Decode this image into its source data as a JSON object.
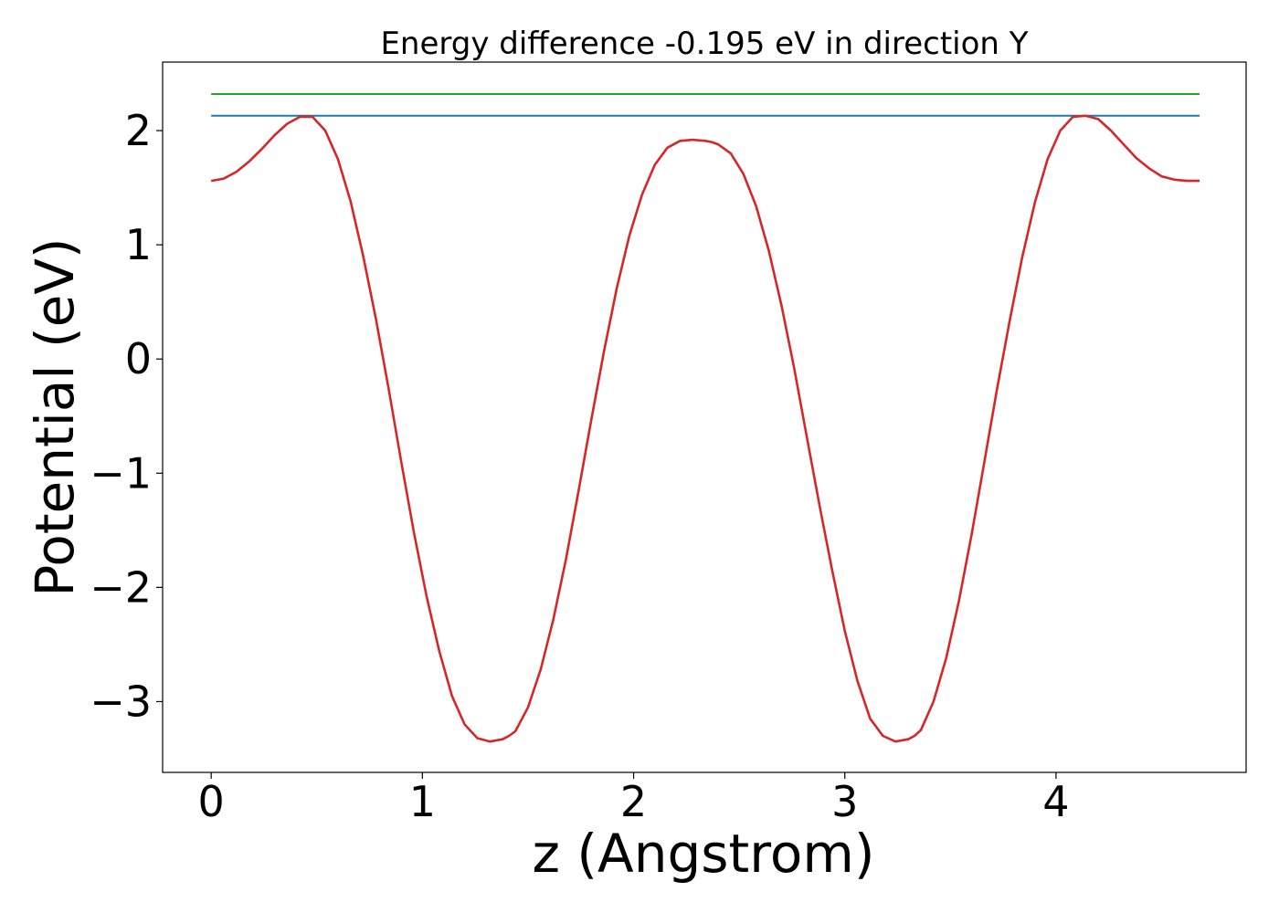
{
  "chart_data": {
    "type": "line",
    "title": "Energy difference -0.195 eV in direction Y",
    "xlabel": "z (Angstrom)",
    "ylabel": "Potential (eV)",
    "xlim": [
      -0.23,
      4.9
    ],
    "ylim": [
      -3.62,
      2.6
    ],
    "xticks": [
      0,
      1,
      2,
      3,
      4
    ],
    "xtick_labels": [
      "0",
      "1",
      "2",
      "3",
      "4"
    ],
    "yticks": [
      -3,
      -2,
      -1,
      0,
      1,
      2
    ],
    "ytick_labels": [
      "−3",
      "−2",
      "−1",
      "0",
      "1",
      "2"
    ],
    "grid": false,
    "series": [
      {
        "color": "#d62728",
        "x": [
          0.0,
          0.06,
          0.12,
          0.18,
          0.24,
          0.3,
          0.36,
          0.42,
          0.48,
          0.54,
          0.6,
          0.66,
          0.72,
          0.78,
          0.84,
          0.9,
          0.96,
          1.02,
          1.08,
          1.14,
          1.2,
          1.26,
          1.32,
          1.38,
          1.41,
          1.44,
          1.5,
          1.56,
          1.62,
          1.68,
          1.74,
          1.8,
          1.86,
          1.92,
          1.98,
          2.04,
          2.1,
          2.16,
          2.22,
          2.28,
          2.34,
          2.37,
          2.4,
          2.46,
          2.52,
          2.58,
          2.64,
          2.7,
          2.76,
          2.82,
          2.88,
          2.94,
          3.0,
          3.06,
          3.12,
          3.18,
          3.24,
          3.3,
          3.33,
          3.36,
          3.42,
          3.48,
          3.54,
          3.6,
          3.66,
          3.72,
          3.78,
          3.84,
          3.9,
          3.96,
          4.02,
          4.08,
          4.14,
          4.2,
          4.26,
          4.32,
          4.38,
          4.44,
          4.5,
          4.56,
          4.62,
          4.68
        ],
        "y": [
          1.56,
          1.58,
          1.64,
          1.73,
          1.84,
          1.96,
          2.06,
          2.12,
          2.12,
          2.0,
          1.75,
          1.38,
          0.9,
          0.35,
          -0.26,
          -0.9,
          -1.52,
          -2.08,
          -2.56,
          -2.95,
          -3.2,
          -3.32,
          -3.35,
          -3.33,
          -3.3,
          -3.26,
          -3.05,
          -2.72,
          -2.28,
          -1.75,
          -1.15,
          -0.53,
          0.07,
          0.62,
          1.08,
          1.44,
          1.7,
          1.85,
          1.91,
          1.92,
          1.91,
          1.9,
          1.88,
          1.8,
          1.62,
          1.34,
          0.95,
          0.47,
          -0.08,
          -0.68,
          -1.28,
          -1.85,
          -2.38,
          -2.82,
          -3.15,
          -3.3,
          -3.35,
          -3.33,
          -3.3,
          -3.25,
          -3.0,
          -2.62,
          -2.12,
          -1.54,
          -0.91,
          -0.27,
          0.33,
          0.89,
          1.37,
          1.75,
          2.0,
          2.12,
          2.13,
          2.1,
          2.0,
          1.88,
          1.76,
          1.67,
          1.6,
          1.57,
          1.56,
          1.56
        ]
      },
      {
        "color": "#1f77b4",
        "x": [
          0.0,
          4.68
        ],
        "y": [
          2.13,
          2.13
        ]
      },
      {
        "color": "#2ca02c",
        "x": [
          0.0,
          4.68
        ],
        "y": [
          2.32,
          2.32
        ]
      }
    ]
  }
}
